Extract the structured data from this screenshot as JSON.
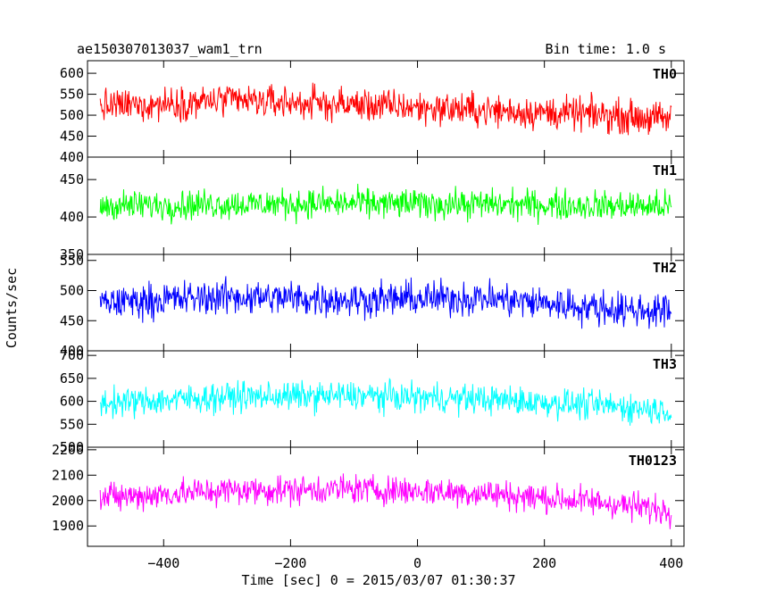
{
  "header": {
    "title": "ae150307013037_wam1_trn",
    "bin_time": "Bin time: 1.0 s"
  },
  "chart_data": {
    "type": "line",
    "title": "ae150307013037_wam1_trn",
    "subtitle": "Bin time: 1.0 s",
    "xlabel": "Time [sec] 0 = 2015/03/07 01:30:37",
    "ylabel": "Counts/sec",
    "xlim": [
      -520,
      420
    ],
    "x_ticks": [
      -400,
      -200,
      0,
      200,
      400
    ],
    "x_tick_labels": [
      "−400",
      "−200",
      "0",
      "200",
      "400"
    ],
    "x_range": [
      -500,
      400
    ],
    "bin_time_s": 1.0,
    "panels": [
      {
        "label": "TH0",
        "color": "#ff0000",
        "ylim": [
          400,
          630
        ],
        "y_ticks": [
          400,
          450,
          500,
          550,
          600
        ],
        "trend_x": [
          -500,
          -300,
          -100,
          100,
          300,
          400
        ],
        "trend_y": [
          520,
          535,
          525,
          512,
          500,
          490
        ],
        "amplitude": 75
      },
      {
        "label": "TH1",
        "color": "#00ff00",
        "ylim": [
          350,
          480
        ],
        "y_ticks": [
          350,
          400,
          450
        ],
        "trend_x": [
          -500,
          -300,
          -100,
          100,
          300,
          400
        ],
        "trend_y": [
          415,
          417,
          418,
          417,
          415,
          414
        ],
        "amplitude": 38
      },
      {
        "label": "TH2",
        "color": "#0000ff",
        "ylim": [
          400,
          560
        ],
        "y_ticks": [
          400,
          450,
          500,
          550
        ],
        "trend_x": [
          -500,
          -300,
          -100,
          100,
          300,
          400
        ],
        "trend_y": [
          480,
          490,
          485,
          488,
          470,
          465
        ],
        "amplitude": 55
      },
      {
        "label": "TH3",
        "color": "#00ffff",
        "ylim": [
          500,
          710
        ],
        "y_ticks": [
          500,
          550,
          600,
          650,
          700
        ],
        "trend_x": [
          -500,
          -300,
          -100,
          100,
          300,
          400
        ],
        "trend_y": [
          595,
          610,
          612,
          605,
          590,
          580
        ],
        "amplitude": 60
      },
      {
        "label": "TH0123",
        "color": "#ff00ff",
        "ylim": [
          1820,
          2210
        ],
        "y_ticks": [
          1900,
          2000,
          2100,
          2200
        ],
        "y_tick_labels": [
          "1900",
          "2000",
          "2100",
          "2200"
        ],
        "trend_x": [
          -500,
          -300,
          -100,
          100,
          300,
          400
        ],
        "trend_y": [
          2010,
          2040,
          2045,
          2030,
          1990,
          1960
        ],
        "amplitude": 110
      }
    ]
  }
}
